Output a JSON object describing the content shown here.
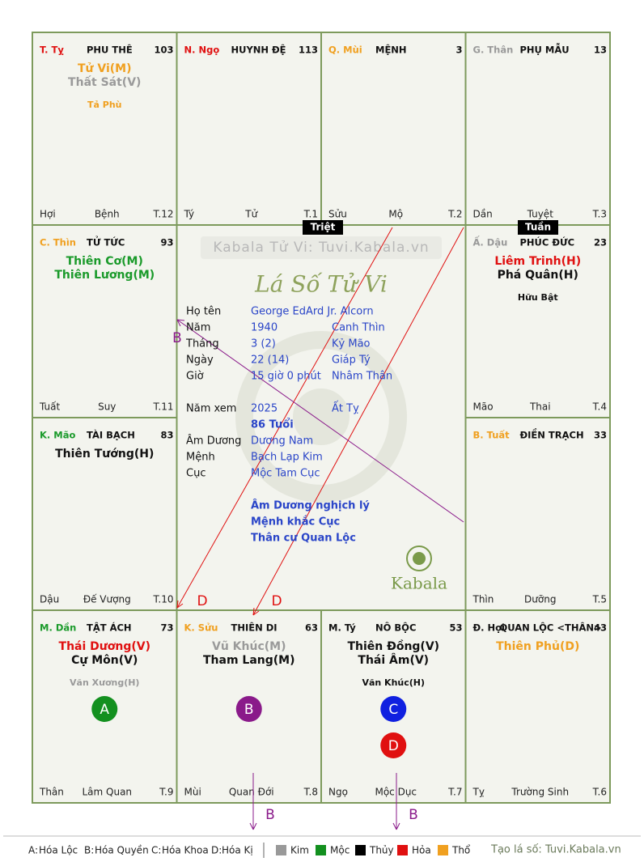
{
  "palaces": [
    {
      "stem_branch": "T. Tỵ",
      "stem_color": "#e01010",
      "name": "PHU THÊ",
      "number": 103,
      "stars": [
        {
          "text": "Tử Vi(M)",
          "color": "#f0a020"
        },
        {
          "text": "Thất Sát(V)",
          "color": "#9a9a9a"
        }
      ],
      "minor": [
        {
          "text": "Tả Phù",
          "color": "#f0a020"
        }
      ],
      "mutagens": [],
      "bottom": [
        "Hợi",
        "Bệnh",
        "T.12"
      ]
    },
    {
      "stem_branch": "N. Ngọ",
      "stem_color": "#e01010",
      "name": "HUYNH ĐỆ",
      "number": 113,
      "stars": [],
      "minor": [],
      "mutagens": [],
      "bottom": [
        "Tý",
        "Tử",
        "T.1"
      ]
    },
    {
      "stem_branch": "Q. Mùi",
      "stem_color": "#f0a020",
      "name": "MỆNH",
      "number": 3,
      "stars": [],
      "minor": [],
      "mutagens": [],
      "bottom": [
        "Sửu",
        "Mộ",
        "T.2"
      ]
    },
    {
      "stem_branch": "G. Thân",
      "stem_color": "#9a9a9a",
      "name": "PHỤ MẪU",
      "number": 13,
      "stars": [],
      "minor": [],
      "mutagens": [],
      "bottom": [
        "Dần",
        "Tuyệt",
        "T.3"
      ]
    },
    {
      "stem_branch": "C. Thìn",
      "stem_color": "#f0a020",
      "name": "TỬ TỨC",
      "number": 93,
      "stars": [
        {
          "text": "Thiên Cơ(M)",
          "color": "#1a9a2a"
        },
        {
          "text": "Thiên Lương(M)",
          "color": "#1a9a2a"
        }
      ],
      "minor": [],
      "mutagens": [],
      "bottom": [
        "Tuất",
        "Suy",
        "T.11"
      ]
    },
    {
      "stem_branch": "Ấ. Dậu",
      "stem_color": "#9a9a9a",
      "name": "PHÚC ĐỨC",
      "number": 23,
      "stars": [
        {
          "text": "Liêm Trinh(H)",
          "color": "#e01010"
        },
        {
          "text": "Phá Quân(H)",
          "color": "#111111"
        }
      ],
      "minor": [
        {
          "text": "Hữu Bật",
          "color": "#111111"
        }
      ],
      "mutagens": [],
      "bottom": [
        "Mão",
        "Thai",
        "T.4"
      ]
    },
    {
      "stem_branch": "K. Mão",
      "stem_color": "#1a9a2a",
      "name": "TÀI BẠCH",
      "number": 83,
      "stars": [
        {
          "text": "Thiên Tướng(H)",
          "color": "#111111"
        }
      ],
      "minor": [],
      "mutagens": [],
      "bottom": [
        "Dậu",
        "Đế Vượng",
        "T.10"
      ]
    },
    {
      "stem_branch": "B. Tuất",
      "stem_color": "#f0a020",
      "name": "ĐIỀN TRẠCH",
      "number": 33,
      "stars": [],
      "minor": [],
      "mutagens": [],
      "bottom": [
        "Thìn",
        "Dưỡng",
        "T.5"
      ]
    },
    {
      "stem_branch": "M. Dần",
      "stem_color": "#1a9a2a",
      "name": "TẬT ÁCH",
      "number": 73,
      "stars": [
        {
          "text": "Thái Dương(V)",
          "color": "#e01010"
        },
        {
          "text": "Cự Môn(V)",
          "color": "#111111"
        }
      ],
      "minor": [
        {
          "text": "Văn Xương(H)",
          "color": "#9a9a9a"
        }
      ],
      "mutagens": [
        {
          "letter": "A",
          "color": "#13901f"
        }
      ],
      "bottom": [
        "Thân",
        "Lâm Quan",
        "T.9"
      ]
    },
    {
      "stem_branch": "K. Sửu",
      "stem_color": "#f0a020",
      "name": "THIÊN DI",
      "number": 63,
      "stars": [
        {
          "text": "Vũ Khúc(M)",
          "color": "#9a9a9a"
        },
        {
          "text": "Tham Lang(M)",
          "color": "#111111"
        }
      ],
      "minor": [],
      "mutagens": [
        {
          "letter": "B",
          "color": "#8a1a8a"
        }
      ],
      "bottom": [
        "Mùi",
        "Quan Đới",
        "T.8"
      ]
    },
    {
      "stem_branch": "M. Tý",
      "stem_color": "#111111",
      "name": "NÔ BỘC",
      "number": 53,
      "stars": [
        {
          "text": "Thiên Đồng(V)",
          "color": "#111111"
        },
        {
          "text": "Thái Âm(V)",
          "color": "#111111"
        }
      ],
      "minor": [
        {
          "text": "Văn Khúc(H)",
          "color": "#111111"
        }
      ],
      "mutagens": [
        {
          "letter": "C",
          "color": "#1020e0"
        },
        {
          "letter": "D",
          "color": "#e01010"
        }
      ],
      "bottom": [
        "Ngọ",
        "Mộc Dục",
        "T.7"
      ]
    },
    {
      "stem_branch": "Đ. Hợi",
      "stem_color": "#111111",
      "name": "QUAN LỘC <THÂN>",
      "number": 43,
      "stars": [
        {
          "text": "Thiên Phủ(D)",
          "color": "#f0a020"
        }
      ],
      "minor": [],
      "mutagens": [],
      "bottom": [
        "Tỵ",
        "Trường Sinh",
        "T.6"
      ]
    }
  ],
  "center": {
    "watermark": "Kabala Tử Vi: Tuvi.Kabala.vn",
    "title": "Lá Số Tử Vi",
    "info": [
      [
        "Họ tên",
        "George EdArd Jr. Alcorn"
      ],
      [
        "Năm",
        "1940",
        "Canh Thìn"
      ],
      [
        "Tháng",
        "3  (2)",
        "Kỷ Mão"
      ],
      [
        "Ngày",
        "22  (14)",
        "Giáp Tý"
      ],
      [
        "Giờ",
        "15 giờ 0 phút",
        "Nhâm Thân"
      ]
    ],
    "info2": [
      [
        "Năm xem",
        "2025",
        "Ất Tỵ"
      ],
      [
        "",
        "86 Tuổi"
      ],
      [
        "Âm Dương",
        "Dương Nam"
      ],
      [
        "Mệnh",
        "Bạch Lạp Kim"
      ],
      [
        "Cục",
        "Mộc Tam Cục"
      ]
    ],
    "notes": [
      "Âm Dương nghịch lý",
      "Mệnh khắc Cục",
      "Thân cư Quan Lộc"
    ],
    "logo": "Kabala"
  },
  "tags": [
    "Triệt",
    "Tuần"
  ],
  "annotations": [
    "B",
    "D",
    "D",
    "B",
    "B"
  ],
  "legend": {
    "mutagens": [
      {
        "key": "A:",
        "label": "Hóa Lộc",
        "color": "#13901f"
      },
      {
        "key": "B:",
        "label": "Hóa Quyền",
        "color": "#8a1a8a"
      },
      {
        "key": "C:",
        "label": "Hóa Khoa",
        "color": "#1020e0"
      },
      {
        "key": "D:",
        "label": "Hóa Kị",
        "color": "#e01010"
      }
    ],
    "elements": [
      {
        "label": "Kim",
        "color": "#999999"
      },
      {
        "label": "Mộc",
        "color": "#13901f"
      },
      {
        "label": "Thủy",
        "color": "#000000"
      },
      {
        "label": "Hỏa",
        "color": "#e01010"
      },
      {
        "label": "Thổ",
        "color": "#f0a020"
      }
    ],
    "credit": "Tạo lá số: Tuvi.Kabala.vn"
  }
}
